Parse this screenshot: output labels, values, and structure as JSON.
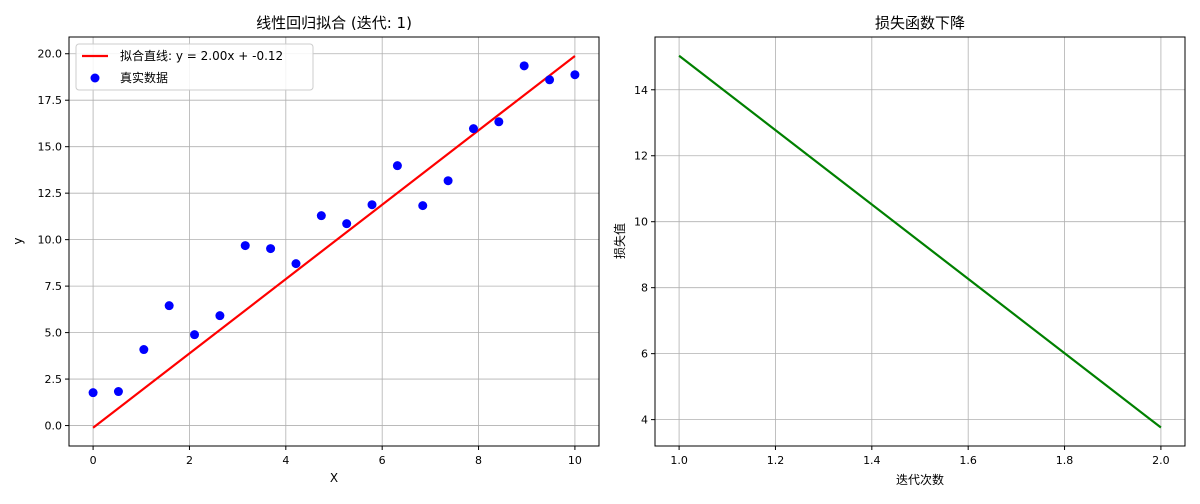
{
  "chart_data": [
    {
      "type": "scatter",
      "title": "线性回归拟合 (迭代: 1)",
      "xlabel": "X",
      "ylabel": "y",
      "xlim": [
        -0.5,
        10.5
      ],
      "ylim": [
        -1.1,
        20.9
      ],
      "xticks": [
        "0",
        "2",
        "4",
        "6",
        "8",
        "10"
      ],
      "yticks": [
        "0.0",
        "2.5",
        "5.0",
        "7.5",
        "10.0",
        "12.5",
        "15.0",
        "17.5",
        "20.0"
      ],
      "grid": true,
      "legend_position": "top-left",
      "series": [
        {
          "name": "拟合直线: y = 2.00x + -0.12",
          "kind": "line",
          "color": "#ff0000",
          "x": [
            0,
            10
          ],
          "y": [
            -0.12,
            19.88
          ]
        },
        {
          "name": "真实数据",
          "kind": "scatter",
          "color": "#0000ff",
          "x": [
            0,
            0.526,
            1.053,
            1.579,
            2.105,
            2.632,
            3.158,
            3.684,
            4.211,
            4.737,
            5.263,
            5.789,
            6.316,
            6.842,
            7.368,
            7.895,
            8.421,
            8.947,
            9.474,
            10
          ],
          "y": [
            1.77,
            1.83,
            4.09,
            6.45,
            4.89,
            5.91,
            9.68,
            9.52,
            8.71,
            11.29,
            10.86,
            11.88,
            13.98,
            11.83,
            13.17,
            15.97,
            16.34,
            19.35,
            18.6,
            18.87
          ]
        }
      ]
    },
    {
      "type": "line",
      "title": "损失函数下降",
      "xlabel": "迭代次数",
      "ylabel": "损失值",
      "xlim": [
        0.95,
        2.05
      ],
      "ylim": [
        3.2,
        15.6
      ],
      "xticks": [
        "1.0",
        "1.2",
        "1.4",
        "1.6",
        "1.8",
        "2.0"
      ],
      "yticks": [
        "4",
        "6",
        "8",
        "10",
        "12",
        "14"
      ],
      "grid": true,
      "series": [
        {
          "kind": "line",
          "color": "#008000",
          "x": [
            1,
            2
          ],
          "y": [
            15.03,
            3.76
          ]
        }
      ]
    }
  ]
}
